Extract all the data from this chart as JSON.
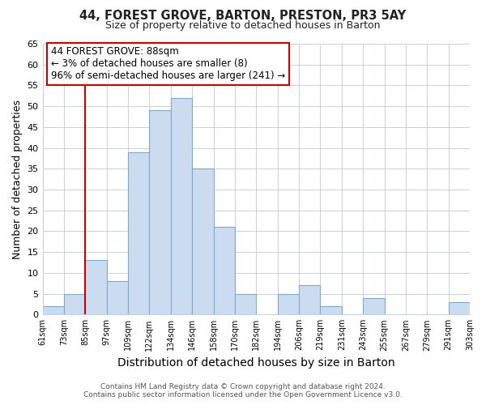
{
  "title": "44, FOREST GROVE, BARTON, PRESTON, PR3 5AY",
  "subtitle": "Size of property relative to detached houses in Barton",
  "xlabel": "Distribution of detached houses by size in Barton",
  "ylabel": "Number of detached properties",
  "bin_labels": [
    "61sqm",
    "73sqm",
    "85sqm",
    "97sqm",
    "109sqm",
    "122sqm",
    "134sqm",
    "146sqm",
    "158sqm",
    "170sqm",
    "182sqm",
    "194sqm",
    "206sqm",
    "219sqm",
    "231sqm",
    "243sqm",
    "255sqm",
    "267sqm",
    "279sqm",
    "291sqm",
    "303sqm"
  ],
  "bar_values": [
    2,
    5,
    13,
    8,
    39,
    49,
    52,
    35,
    21,
    5,
    0,
    5,
    7,
    2,
    0,
    4,
    0,
    0,
    0,
    3
  ],
  "bar_color": "#ccdcf0",
  "bar_edge_color": "#7aaad0",
  "vline_x": 2,
  "vline_color": "#cc0000",
  "ylim": [
    0,
    65
  ],
  "yticks": [
    0,
    5,
    10,
    15,
    20,
    25,
    30,
    35,
    40,
    45,
    50,
    55,
    60,
    65
  ],
  "annotation_title": "44 FOREST GROVE: 88sqm",
  "annotation_line1": "← 3% of detached houses are smaller (8)",
  "annotation_line2": "96% of semi-detached houses are larger (241) →",
  "annotation_box_color": "#ffffff",
  "annotation_box_edge": "#cc0000",
  "footer_line1": "Contains HM Land Registry data © Crown copyright and database right 2024.",
  "footer_line2": "Contains public sector information licensed under the Open Government Licence v3.0.",
  "bg_color": "#ffffff",
  "grid_color": "#c8d0d8"
}
